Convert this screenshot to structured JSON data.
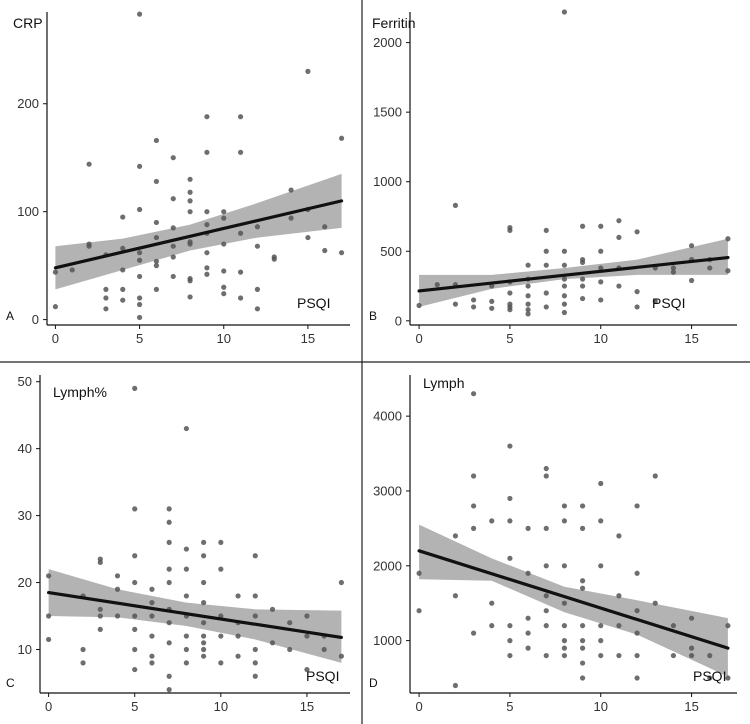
{
  "figure": {
    "colors": {
      "point": "#555555",
      "fit": "#111111",
      "band": "#9a9a9a",
      "axis": "#111111",
      "divider": "#222222"
    }
  },
  "chart_data": [
    {
      "type": "scatter",
      "panel_label": "A",
      "title": "CRP",
      "xlabel": "PSQI",
      "xlim": [
        -0.5,
        17.5
      ],
      "ylim": [
        -5,
        285
      ],
      "xticks": [
        0,
        5,
        10,
        15
      ],
      "yticks": [
        0,
        100,
        200
      ],
      "fit": {
        "x": [
          0,
          17
        ],
        "y": [
          48,
          110
        ]
      },
      "ci_band": {
        "x": [
          0,
          4,
          8,
          12,
          17
        ],
        "upper": [
          68,
          75,
          88,
          108,
          135
        ],
        "lower": [
          28,
          46,
          64,
          76,
          85
        ]
      },
      "points": [
        [
          0,
          12
        ],
        [
          0,
          44
        ],
        [
          1,
          46
        ],
        [
          2,
          68
        ],
        [
          2,
          144
        ],
        [
          2,
          70
        ],
        [
          3,
          60
        ],
        [
          3,
          28
        ],
        [
          3,
          20
        ],
        [
          3,
          10
        ],
        [
          4,
          66
        ],
        [
          4,
          28
        ],
        [
          4,
          18
        ],
        [
          4,
          95
        ],
        [
          4,
          46
        ],
        [
          5,
          283
        ],
        [
          5,
          142
        ],
        [
          5,
          20
        ],
        [
          5,
          14
        ],
        [
          5,
          2
        ],
        [
          5,
          40
        ],
        [
          5,
          55
        ],
        [
          5,
          62
        ],
        [
          5,
          102
        ],
        [
          6,
          90
        ],
        [
          6,
          128
        ],
        [
          6,
          166
        ],
        [
          6,
          54
        ],
        [
          6,
          50
        ],
        [
          6,
          28
        ],
        [
          6,
          76
        ],
        [
          7,
          40
        ],
        [
          7,
          150
        ],
        [
          7,
          112
        ],
        [
          7,
          85
        ],
        [
          7,
          68
        ],
        [
          7,
          58
        ],
        [
          8,
          38
        ],
        [
          8,
          36
        ],
        [
          8,
          21
        ],
        [
          8,
          100
        ],
        [
          8,
          130
        ],
        [
          8,
          118
        ],
        [
          8,
          70
        ],
        [
          8,
          110
        ],
        [
          8,
          72
        ],
        [
          9,
          188
        ],
        [
          9,
          155
        ],
        [
          9,
          100
        ],
        [
          9,
          88
        ],
        [
          9,
          80
        ],
        [
          9,
          62
        ],
        [
          9,
          48
        ],
        [
          9,
          42
        ],
        [
          10,
          70
        ],
        [
          10,
          94
        ],
        [
          10,
          100
        ],
        [
          10,
          24
        ],
        [
          10,
          30
        ],
        [
          10,
          45
        ],
        [
          11,
          188
        ],
        [
          11,
          155
        ],
        [
          11,
          80
        ],
        [
          11,
          20
        ],
        [
          11,
          44
        ],
        [
          12,
          10
        ],
        [
          12,
          68
        ],
        [
          12,
          28
        ],
        [
          12,
          86
        ],
        [
          13,
          56
        ],
        [
          13,
          58
        ],
        [
          14,
          120
        ],
        [
          14,
          94
        ],
        [
          15,
          230
        ],
        [
          15,
          102
        ],
        [
          15,
          76
        ],
        [
          16,
          64
        ],
        [
          16,
          86
        ],
        [
          17,
          168
        ],
        [
          17,
          62
        ]
      ]
    },
    {
      "type": "scatter",
      "panel_label": "B",
      "title": "Ferritin",
      "xlabel": "PSQI",
      "xlim": [
        -0.5,
        17.5
      ],
      "ylim": [
        -30,
        2220
      ],
      "xticks": [
        0,
        5,
        10,
        15
      ],
      "yticks": [
        0,
        500,
        1000,
        1500,
        2000
      ],
      "fit": {
        "x": [
          0,
          17
        ],
        "y": [
          215,
          455
        ]
      },
      "ci_band": {
        "x": [
          0,
          4,
          8,
          12,
          17
        ],
        "upper": [
          330,
          330,
          380,
          440,
          590
        ],
        "lower": [
          100,
          230,
          300,
          330,
          330
        ]
      },
      "points": [
        [
          0,
          110
        ],
        [
          1,
          260
        ],
        [
          2,
          830
        ],
        [
          2,
          120
        ],
        [
          2,
          260
        ],
        [
          3,
          100
        ],
        [
          3,
          150
        ],
        [
          4,
          250
        ],
        [
          4,
          90
        ],
        [
          4,
          140
        ],
        [
          5,
          650
        ],
        [
          5,
          670
        ],
        [
          5,
          100
        ],
        [
          5,
          80
        ],
        [
          5,
          120
        ],
        [
          5,
          200
        ],
        [
          5,
          280
        ],
        [
          6,
          400
        ],
        [
          6,
          300
        ],
        [
          6,
          250
        ],
        [
          6,
          180
        ],
        [
          6,
          120
        ],
        [
          6,
          80
        ],
        [
          6,
          50
        ],
        [
          7,
          650
        ],
        [
          7,
          500
        ],
        [
          7,
          400
        ],
        [
          7,
          200
        ],
        [
          7,
          100
        ],
        [
          8,
          2220
        ],
        [
          8,
          500
        ],
        [
          8,
          400
        ],
        [
          8,
          300
        ],
        [
          8,
          250
        ],
        [
          8,
          180
        ],
        [
          8,
          120
        ],
        [
          8,
          60
        ],
        [
          9,
          680
        ],
        [
          9,
          440
        ],
        [
          9,
          420
        ],
        [
          9,
          300
        ],
        [
          9,
          250
        ],
        [
          9,
          160
        ],
        [
          10,
          680
        ],
        [
          10,
          500
        ],
        [
          10,
          380
        ],
        [
          10,
          280
        ],
        [
          10,
          150
        ],
        [
          11,
          720
        ],
        [
          11,
          600
        ],
        [
          11,
          380
        ],
        [
          11,
          250
        ],
        [
          12,
          640
        ],
        [
          12,
          210
        ],
        [
          12,
          100
        ],
        [
          13,
          380
        ],
        [
          13,
          140
        ],
        [
          14,
          380
        ],
        [
          14,
          350
        ],
        [
          15,
          540
        ],
        [
          15,
          440
        ],
        [
          15,
          290
        ],
        [
          16,
          440
        ],
        [
          16,
          380
        ],
        [
          17,
          590
        ],
        [
          17,
          360
        ]
      ]
    },
    {
      "type": "scatter",
      "panel_label": "C",
      "title": "Lymph%",
      "xlabel": "PSQI",
      "xlim": [
        -0.5,
        17.5
      ],
      "ylim": [
        3.5,
        51
      ],
      "xticks": [
        0,
        5,
        10,
        15
      ],
      "yticks": [
        10,
        20,
        30,
        40,
        50
      ],
      "fit": {
        "x": [
          0,
          17
        ],
        "y": [
          18.5,
          11.8
        ]
      },
      "ci_band": {
        "x": [
          0,
          4,
          8,
          12,
          17
        ],
        "upper": [
          22,
          19,
          17,
          16,
          15.8
        ],
        "lower": [
          15,
          14.8,
          13.5,
          11.5,
          8
        ]
      },
      "points": [
        [
          0,
          21
        ],
        [
          0,
          15
        ],
        [
          0,
          11.5
        ],
        [
          2,
          18
        ],
        [
          2,
          10
        ],
        [
          2,
          8
        ],
        [
          3,
          23.5
        ],
        [
          3,
          23
        ],
        [
          3,
          16
        ],
        [
          3,
          15
        ],
        [
          3,
          13
        ],
        [
          4,
          21
        ],
        [
          4,
          19
        ],
        [
          4,
          15
        ],
        [
          5,
          49
        ],
        [
          5,
          31
        ],
        [
          5,
          24
        ],
        [
          5,
          20
        ],
        [
          5,
          15
        ],
        [
          5,
          13
        ],
        [
          5,
          10
        ],
        [
          5,
          7
        ],
        [
          6,
          19
        ],
        [
          6,
          17
        ],
        [
          6,
          15
        ],
        [
          6,
          12
        ],
        [
          6,
          9
        ],
        [
          6,
          8
        ],
        [
          7,
          31
        ],
        [
          7,
          29
        ],
        [
          7,
          26
        ],
        [
          7,
          22
        ],
        [
          7,
          20
        ],
        [
          7,
          16
        ],
        [
          7,
          14
        ],
        [
          7,
          11
        ],
        [
          7,
          6
        ],
        [
          7,
          4
        ],
        [
          8,
          43
        ],
        [
          8,
          25
        ],
        [
          8,
          22
        ],
        [
          8,
          18
        ],
        [
          8,
          15
        ],
        [
          8,
          12
        ],
        [
          8,
          10
        ],
        [
          8,
          8
        ],
        [
          9,
          26
        ],
        [
          9,
          24
        ],
        [
          9,
          20
        ],
        [
          9,
          17
        ],
        [
          9,
          14
        ],
        [
          9,
          12
        ],
        [
          9,
          11
        ],
        [
          9,
          10
        ],
        [
          9,
          9
        ],
        [
          10,
          26
        ],
        [
          10,
          22
        ],
        [
          10,
          15
        ],
        [
          10,
          12
        ],
        [
          10,
          8
        ],
        [
          11,
          18
        ],
        [
          11,
          14
        ],
        [
          11,
          12
        ],
        [
          11,
          9
        ],
        [
          12,
          24
        ],
        [
          12,
          18
        ],
        [
          12,
          15
        ],
        [
          12,
          10
        ],
        [
          12,
          8
        ],
        [
          12,
          6
        ],
        [
          13,
          16
        ],
        [
          13,
          11
        ],
        [
          14,
          14
        ],
        [
          14,
          10
        ],
        [
          15,
          15
        ],
        [
          15,
          12
        ],
        [
          15,
          7
        ],
        [
          16,
          12
        ],
        [
          16,
          10
        ],
        [
          17,
          20
        ],
        [
          17,
          9
        ]
      ]
    },
    {
      "type": "scatter",
      "panel_label": "D",
      "title": "Lymph",
      "xlabel": "PSQI",
      "xlim": [
        -0.5,
        17.5
      ],
      "ylim": [
        300,
        4550
      ],
      "xticks": [
        0,
        5,
        10,
        15
      ],
      "yticks": [
        1000,
        2000,
        3000,
        4000
      ],
      "fit": {
        "x": [
          0,
          17
        ],
        "y": [
          2200,
          900
        ]
      },
      "ci_band": {
        "x": [
          0,
          4,
          8,
          12,
          17
        ],
        "upper": [
          2550,
          2100,
          1720,
          1540,
          1300
        ],
        "lower": [
          1820,
          1800,
          1380,
          1080,
          520
        ]
      },
      "points": [
        [
          0,
          1900
        ],
        [
          0,
          1400
        ],
        [
          2,
          2400
        ],
        [
          2,
          1600
        ],
        [
          2,
          400
        ],
        [
          3,
          4300
        ],
        [
          3,
          3200
        ],
        [
          3,
          2800
        ],
        [
          3,
          2500
        ],
        [
          3,
          1100
        ],
        [
          4,
          2600
        ],
        [
          4,
          1500
        ],
        [
          4,
          1200
        ],
        [
          5,
          3600
        ],
        [
          5,
          2900
        ],
        [
          5,
          2600
        ],
        [
          5,
          2100
        ],
        [
          5,
          1200
        ],
        [
          5,
          1000
        ],
        [
          5,
          800
        ],
        [
          6,
          2500
        ],
        [
          6,
          1900
        ],
        [
          6,
          1300
        ],
        [
          6,
          1100
        ],
        [
          6,
          900
        ],
        [
          7,
          3300
        ],
        [
          7,
          3200
        ],
        [
          7,
          2500
        ],
        [
          7,
          2000
        ],
        [
          7,
          1600
        ],
        [
          7,
          1400
        ],
        [
          7,
          1200
        ],
        [
          7,
          800
        ],
        [
          8,
          2800
        ],
        [
          8,
          2600
        ],
        [
          8,
          2000
        ],
        [
          8,
          1500
        ],
        [
          8,
          1200
        ],
        [
          8,
          1000
        ],
        [
          8,
          900
        ],
        [
          8,
          800
        ],
        [
          9,
          2800
        ],
        [
          9,
          2500
        ],
        [
          9,
          1800
        ],
        [
          9,
          1700
        ],
        [
          9,
          1200
        ],
        [
          9,
          1000
        ],
        [
          9,
          900
        ],
        [
          9,
          700
        ],
        [
          9,
          500
        ],
        [
          10,
          3100
        ],
        [
          10,
          2600
        ],
        [
          10,
          2000
        ],
        [
          10,
          1200
        ],
        [
          10,
          1000
        ],
        [
          10,
          800
        ],
        [
          11,
          2400
        ],
        [
          11,
          1600
        ],
        [
          11,
          1200
        ],
        [
          11,
          800
        ],
        [
          12,
          2800
        ],
        [
          12,
          1900
        ],
        [
          12,
          1400
        ],
        [
          12,
          1100
        ],
        [
          12,
          800
        ],
        [
          12,
          500
        ],
        [
          13,
          3200
        ],
        [
          13,
          1500
        ],
        [
          14,
          1200
        ],
        [
          14,
          800
        ],
        [
          15,
          1300
        ],
        [
          15,
          900
        ],
        [
          15,
          800
        ],
        [
          16,
          800
        ],
        [
          16,
          500
        ],
        [
          17,
          1200
        ],
        [
          17,
          500
        ]
      ]
    }
  ]
}
